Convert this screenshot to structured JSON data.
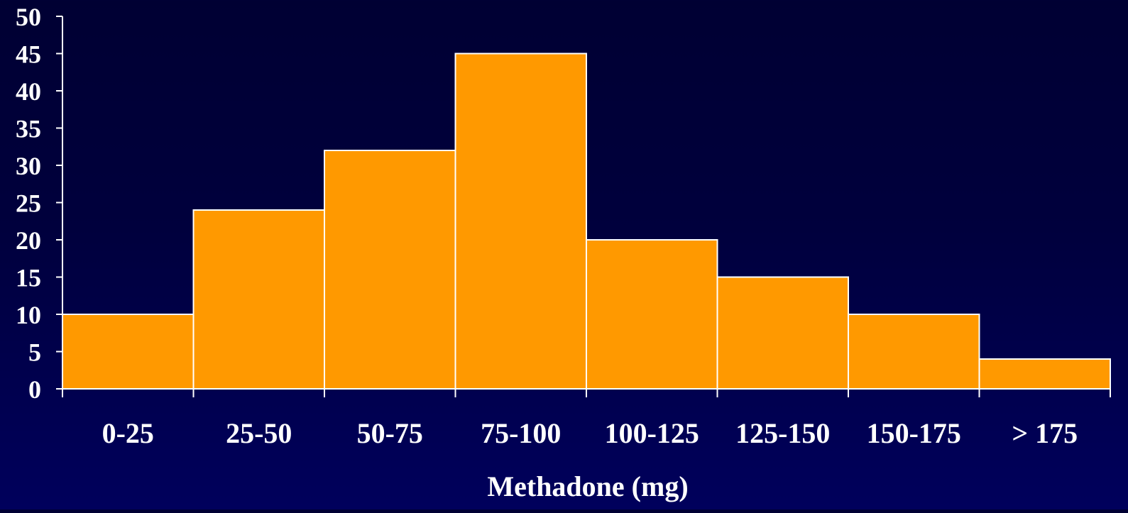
{
  "chart_data": {
    "type": "bar",
    "title": "",
    "xlabel": "Methadone (mg)",
    "ylabel": "",
    "categories": [
      "0-25",
      "25-50",
      "50-75",
      "75-100",
      "100-125",
      "125-150",
      "150-175",
      "> 175"
    ],
    "values": [
      10,
      24,
      32,
      45,
      20,
      15,
      10,
      4
    ],
    "ylim": [
      0,
      50
    ],
    "yticks": [
      0,
      5,
      10,
      15,
      20,
      25,
      30,
      35,
      40,
      45,
      50
    ],
    "grid": false,
    "legend": "none",
    "colors": {
      "bar_fill": "#ff9900",
      "bar_edge": "#ffffff",
      "axis": "#ffffff",
      "text": "#ffffff"
    }
  }
}
